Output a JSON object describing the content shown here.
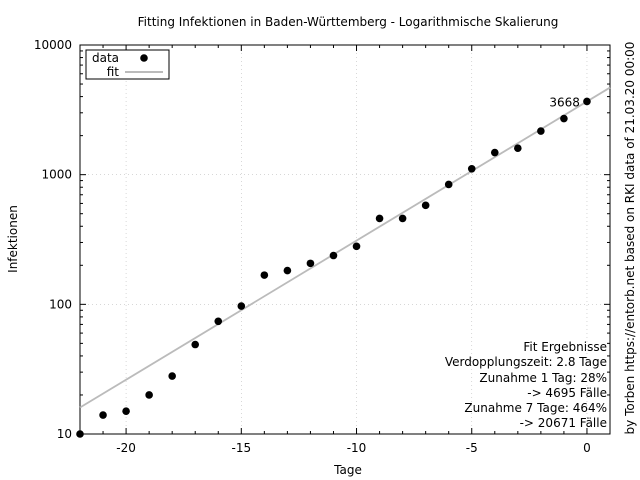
{
  "chart_data": {
    "type": "scatter",
    "title": "Fitting Infektionen in Baden-Württemberg - Logarithmische Skalierung",
    "xlabel": "Tage",
    "ylabel": "Infektionen",
    "right_label": "by Torben https://entorb.net based on RKI data of 21.03.20 00:00",
    "xlim": [
      -22,
      1
    ],
    "ylim": [
      10,
      10000
    ],
    "y_scale": "log",
    "grid": true,
    "x_ticks": [
      -20,
      -15,
      -10,
      -5,
      0
    ],
    "x_tick_labels": [
      "-20",
      "-15",
      "-10",
      "-5",
      "0"
    ],
    "y_ticks": [
      10,
      100,
      1000,
      10000
    ],
    "y_tick_labels": [
      "10",
      "100",
      "1000",
      "10000"
    ],
    "legend": {
      "placement": "top-left",
      "entries": [
        {
          "label": "data",
          "kind": "point"
        },
        {
          "label": "fit",
          "kind": "line"
        }
      ]
    },
    "series": [
      {
        "name": "data",
        "kind": "points",
        "color": "#000000",
        "x": [
          -22,
          -21,
          -20,
          -19,
          -18,
          -17,
          -16,
          -15,
          -14,
          -13,
          -12,
          -11,
          -10,
          -9,
          -8,
          -7,
          -6,
          -5,
          -4,
          -3,
          -2,
          -1,
          0
        ],
        "y": [
          10,
          14,
          15,
          20,
          28,
          49,
          74,
          97,
          168,
          182,
          207,
          238,
          280,
          460,
          460,
          580,
          840,
          1110,
          1480,
          1600,
          2170,
          2710,
          3668
        ]
      },
      {
        "name": "fit",
        "kind": "line",
        "color": "#bbbbbb",
        "x": [
          -22,
          1
        ],
        "y": [
          16,
          4695
        ]
      }
    ],
    "annotations": [
      {
        "text": "3668",
        "x": 0,
        "y": 3668
      }
    ],
    "fit_box": {
      "title": "Fit Ergebnisse",
      "lines": [
        "Verdopplungszeit: 2.8 Tage",
        "Zunahme 1 Tag: 28%",
        "-> 4695 Fälle",
        "Zunahme 7 Tage: 464%",
        "-> 20671 Fälle"
      ]
    }
  }
}
